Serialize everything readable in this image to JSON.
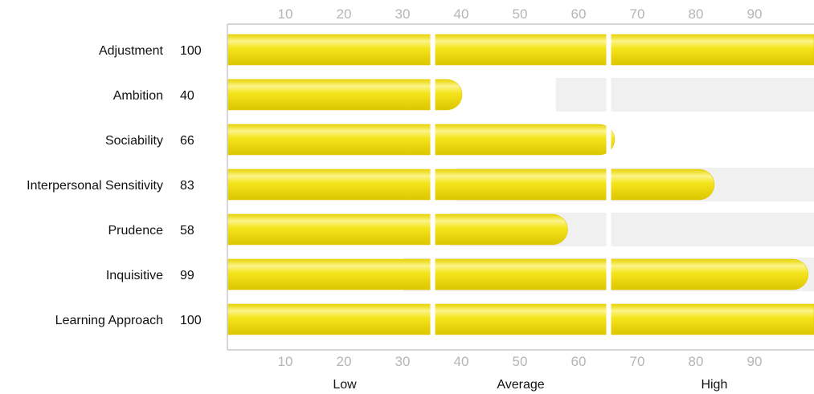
{
  "chart_data": {
    "type": "bar",
    "orientation": "horizontal",
    "categories": [
      "Adjustment",
      "Ambition",
      "Sociability",
      "Interpersonal Sensitivity",
      "Prudence",
      "Inquisitive",
      "Learning Approach"
    ],
    "values": [
      100,
      40,
      66,
      83,
      58,
      99,
      100
    ],
    "value_labels": [
      "100",
      "40",
      "66",
      "83",
      "58",
      "99",
      "100"
    ],
    "xlim": [
      0,
      100
    ],
    "ticks": [
      10,
      20,
      30,
      40,
      50,
      60,
      70,
      80,
      90
    ],
    "tick_labels": [
      "10",
      "20",
      "30",
      "40",
      "50",
      "60",
      "70",
      "80",
      "90"
    ],
    "bands": [
      {
        "label": "Low",
        "from": 0,
        "to": 35
      },
      {
        "label": "Average",
        "from": 35,
        "to": 65
      },
      {
        "label": "High",
        "from": 65,
        "to": 100
      }
    ],
    "background_ranges": [
      null,
      [
        56,
        100
      ],
      null,
      [
        39,
        100
      ],
      [
        38,
        100
      ],
      [
        30,
        100
      ],
      null
    ],
    "colors": {
      "bar": "#f2e014",
      "bar_highlight": "#fbf27a",
      "bar_shadow": "#d9c200",
      "range_bg": "#f0f0f0",
      "axis": "#c8c8c8",
      "tick_text": "#b5b5b5"
    },
    "title": "",
    "xlabel": "",
    "ylabel": ""
  }
}
